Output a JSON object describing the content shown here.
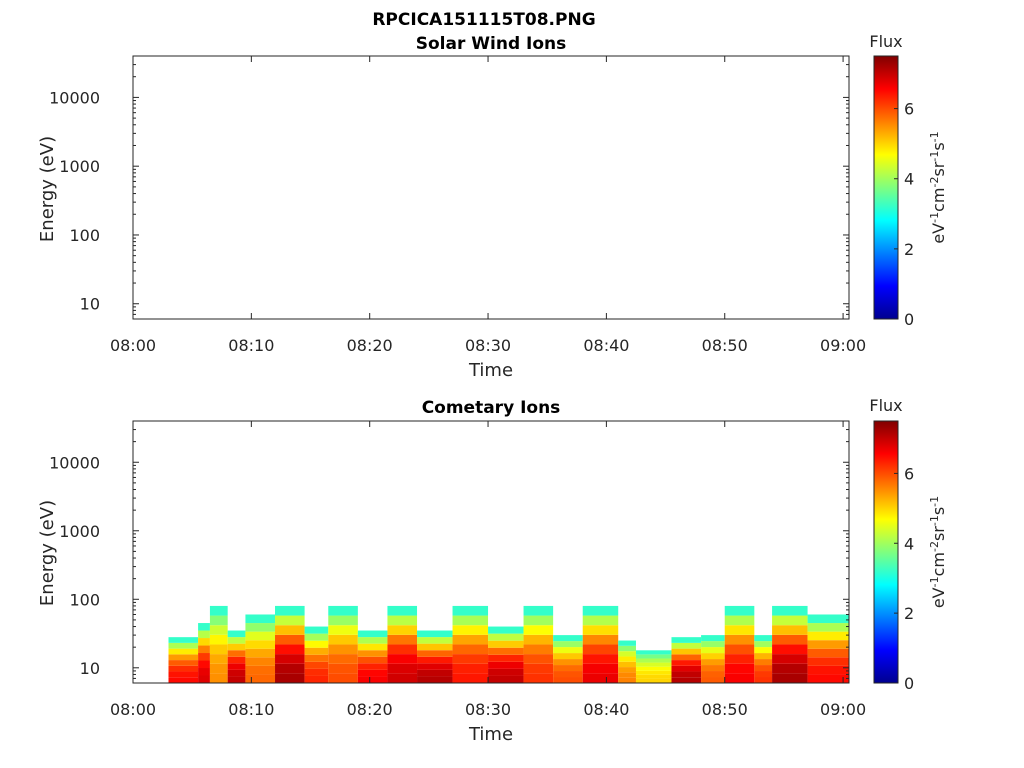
{
  "figure_title": "RPCICA151115T08.PNG",
  "colors": {
    "axis": "#262626",
    "colormap": [
      "#00008f",
      "#0000ff",
      "#007fff",
      "#00ffff",
      "#7fff7f",
      "#ffff00",
      "#ff7f00",
      "#ff0000",
      "#800000"
    ]
  },
  "chart_data": [
    {
      "type": "heatmap",
      "title": "Solar Wind Ions",
      "xlabel": "Time",
      "ylabel": "Energy (eV)",
      "xticks": [
        "08:00",
        "08:10",
        "08:20",
        "08:30",
        "08:40",
        "08:50",
        "09:00"
      ],
      "xlim_minutes": [
        0,
        60.5
      ],
      "yscale": "log",
      "ylim": [
        6,
        40000
      ],
      "yticks": [
        10,
        100,
        1000,
        10000
      ],
      "ytick_labels": [
        "10",
        "100",
        "1000",
        "10000"
      ],
      "colorbar": {
        "label": "Flux",
        "unit_label": "eV-1cm-2sr-1s-1",
        "clim": [
          0,
          7.5
        ],
        "ticks": [
          "0",
          "2",
          "4",
          "6"
        ]
      },
      "bands": []
    },
    {
      "type": "heatmap",
      "title": "Cometary Ions",
      "xlabel": "Time",
      "ylabel": "Energy (eV)",
      "xticks": [
        "08:00",
        "08:10",
        "08:20",
        "08:30",
        "08:40",
        "08:50",
        "09:00"
      ],
      "xlim_minutes": [
        0,
        60.5
      ],
      "yscale": "log",
      "ylim": [
        6,
        40000
      ],
      "yticks": [
        10,
        100,
        1000,
        10000
      ],
      "ytick_labels": [
        "10",
        "100",
        "1000",
        "10000"
      ],
      "colorbar": {
        "label": "Flux",
        "unit_label": "eV-1cm-2sr-1s-1",
        "clim": [
          0,
          7.5
        ],
        "ticks": [
          "0",
          "2",
          "4",
          "6"
        ]
      },
      "bands": [
        {
          "t": [
            3.0,
            5.5
          ],
          "e_low": 6,
          "e_high": 28,
          "flux": 6.5
        },
        {
          "t": [
            5.5,
            6.5
          ],
          "e_low": 6,
          "e_high": 45,
          "flux": 6.8
        },
        {
          "t": [
            6.5,
            8.0
          ],
          "e_low": 6,
          "e_high": 80,
          "flux": 5.5
        },
        {
          "t": [
            8.0,
            9.5
          ],
          "e_low": 6,
          "e_high": 35,
          "flux": 7.0
        },
        {
          "t": [
            9.5,
            12.0
          ],
          "e_low": 6,
          "e_high": 60,
          "flux": 5.8
        },
        {
          "t": [
            12.0,
            14.5
          ],
          "e_low": 6,
          "e_high": 80,
          "flux": 7.2
        },
        {
          "t": [
            14.5,
            16.5
          ],
          "e_low": 6,
          "e_high": 40,
          "flux": 6.3
        },
        {
          "t": [
            16.5,
            19.0
          ],
          "e_low": 6,
          "e_high": 80,
          "flux": 6.0
        },
        {
          "t": [
            19.0,
            21.5
          ],
          "e_low": 6,
          "e_high": 35,
          "flux": 6.6
        },
        {
          "t": [
            21.5,
            24.0
          ],
          "e_low": 6,
          "e_high": 80,
          "flux": 6.9
        },
        {
          "t": [
            24.0,
            27.0
          ],
          "e_low": 6,
          "e_high": 35,
          "flux": 7.1
        },
        {
          "t": [
            27.0,
            30.0
          ],
          "e_low": 6,
          "e_high": 80,
          "flux": 6.4
        },
        {
          "t": [
            30.0,
            33.0
          ],
          "e_low": 6,
          "e_high": 40,
          "flux": 7.0
        },
        {
          "t": [
            33.0,
            35.5
          ],
          "e_low": 6,
          "e_high": 80,
          "flux": 6.2
        },
        {
          "t": [
            35.5,
            38.0
          ],
          "e_low": 6,
          "e_high": 30,
          "flux": 6.0
        },
        {
          "t": [
            38.0,
            41.0
          ],
          "e_low": 6,
          "e_high": 80,
          "flux": 6.7
        },
        {
          "t": [
            41.0,
            42.5
          ],
          "e_low": 6,
          "e_high": 25,
          "flux": 5.6
        },
        {
          "t": [
            42.5,
            45.5
          ],
          "e_low": 6,
          "e_high": 18,
          "flux": 5.0
        },
        {
          "t": [
            45.5,
            48.0
          ],
          "e_low": 6,
          "e_high": 28,
          "flux": 7.1
        },
        {
          "t": [
            48.0,
            50.0
          ],
          "e_low": 6,
          "e_high": 30,
          "flux": 5.9
        },
        {
          "t": [
            50.0,
            52.5
          ],
          "e_low": 6,
          "e_high": 80,
          "flux": 6.6
        },
        {
          "t": [
            52.5,
            54.0
          ],
          "e_low": 6,
          "e_high": 30,
          "flux": 6.2
        },
        {
          "t": [
            54.0,
            57.0
          ],
          "e_low": 6,
          "e_high": 80,
          "flux": 7.2
        },
        {
          "t": [
            57.0,
            60.5
          ],
          "e_low": 6,
          "e_high": 60,
          "flux": 6.5
        }
      ]
    }
  ]
}
